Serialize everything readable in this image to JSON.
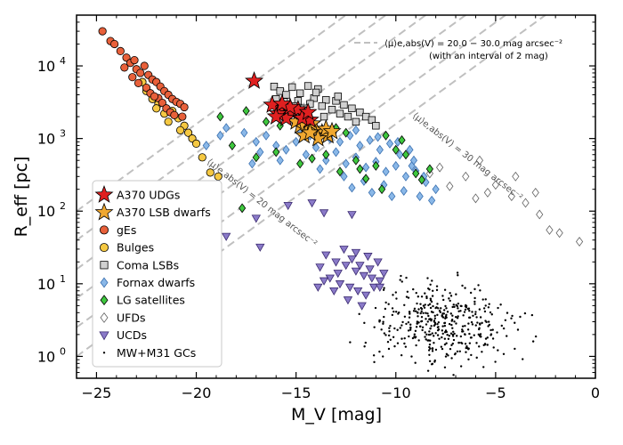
{
  "chart_data": {
    "type": "scatter",
    "xlabel": "M_V [mag]",
    "ylabel": "R_eff [pc]",
    "x_axis_ticks": [
      "−25",
      "−20",
      "−15",
      "−10",
      "−5",
      "0"
    ],
    "x_tick_values": [
      -25,
      -20,
      -15,
      -10,
      -5,
      0
    ],
    "y_axis_ticks": [
      "10",
      "10",
      "10",
      "10",
      "10"
    ],
    "y_tick_exponents": [
      "0",
      "1",
      "2",
      "3",
      "4"
    ],
    "y_tick_values": [
      1,
      10,
      100,
      1000,
      10000
    ],
    "xlim": [
      -26,
      0
    ],
    "ylim": [
      0.5,
      50000
    ],
    "yscale": "log",
    "legend_position": "lower-left",
    "iso_lines": {
      "legend_label": "⟨μ⟩e,abs(V) = 20.0 − 30.0 mag arcsec⁻²",
      "legend_sublabel": "(with an interval of 2 mag)",
      "mu_values": [
        20,
        22,
        24,
        26,
        28,
        30
      ],
      "color": "#c0c0c0",
      "label_20": "⟨μ⟩e,abs(V) = 20 mag arcsec⁻²",
      "label_30": "⟨μ⟩e,abs(V) = 30 mag arcsec⁻²"
    },
    "series": [
      {
        "name": "A370 UDGs",
        "marker": "star",
        "color": "#e02020",
        "edge": "#000000",
        "points": [
          [
            -17.1,
            6200
          ],
          [
            -15.8,
            2600
          ],
          [
            -15.2,
            2300
          ],
          [
            -14.6,
            2100
          ],
          [
            -16.2,
            2900
          ],
          [
            -15.5,
            1900
          ],
          [
            -14.9,
            2500
          ],
          [
            -15.9,
            2200
          ],
          [
            -14.3,
            1800
          ],
          [
            -16.0,
            2000
          ],
          [
            -15.3,
            2700
          ],
          [
            -14.7,
            1900
          ],
          [
            -15.7,
            3000
          ],
          [
            -14.4,
            2300
          ]
        ]
      },
      {
        "name": "A370 LSB dwarfs",
        "marker": "star",
        "color": "#f0a830",
        "edge": "#000000",
        "points": [
          [
            -14.5,
            1400
          ],
          [
            -14.0,
            1300
          ],
          [
            -13.7,
            1200
          ],
          [
            -14.8,
            1500
          ],
          [
            -13.4,
            1100
          ],
          [
            -14.2,
            1600
          ],
          [
            -13.9,
            1000
          ],
          [
            -14.6,
            1100
          ],
          [
            -13.5,
            1350
          ],
          [
            -15.0,
            1700
          ],
          [
            -13.2,
            1250
          ],
          [
            -14.3,
            1200
          ]
        ]
      },
      {
        "name": "gEs",
        "marker": "circle",
        "color": "#e8603a",
        "edge": "#000000",
        "points": [
          [
            -24.7,
            30000
          ],
          [
            -24.3,
            22000
          ],
          [
            -24.1,
            20000
          ],
          [
            -23.8,
            16000
          ],
          [
            -23.5,
            13000
          ],
          [
            -23.3,
            11000
          ],
          [
            -23.1,
            12000
          ],
          [
            -23.0,
            9000
          ],
          [
            -22.8,
            8000
          ],
          [
            -22.6,
            10000
          ],
          [
            -22.4,
            7500
          ],
          [
            -22.2,
            6500
          ],
          [
            -22.0,
            6000
          ],
          [
            -21.8,
            5200
          ],
          [
            -21.6,
            4500
          ],
          [
            -21.4,
            4000
          ],
          [
            -21.2,
            3500
          ],
          [
            -21.0,
            3200
          ],
          [
            -20.8,
            3000
          ],
          [
            -20.6,
            2700
          ],
          [
            -22.5,
            5000
          ],
          [
            -22.3,
            4200
          ],
          [
            -21.9,
            3600
          ],
          [
            -21.7,
            3100
          ],
          [
            -21.5,
            2600
          ],
          [
            -23.2,
            7000
          ],
          [
            -22.9,
            5800
          ],
          [
            -21.3,
            2300
          ],
          [
            -21.1,
            2100
          ],
          [
            -20.7,
            2000
          ],
          [
            -22.1,
            3800
          ],
          [
            -23.6,
            9500
          ]
        ]
      },
      {
        "name": "Bulges",
        "marker": "circle",
        "color": "#f5c842",
        "edge": "#000000",
        "points": [
          [
            -22.7,
            6000
          ],
          [
            -22.5,
            4500
          ],
          [
            -22.2,
            3500
          ],
          [
            -21.9,
            3000
          ],
          [
            -21.6,
            2200
          ],
          [
            -21.2,
            2400
          ],
          [
            -20.9,
            1900
          ],
          [
            -20.6,
            1500
          ],
          [
            -20.4,
            1200
          ],
          [
            -20.2,
            1000
          ],
          [
            -20.0,
            850
          ],
          [
            -19.7,
            550
          ],
          [
            -19.3,
            340
          ],
          [
            -18.9,
            300
          ],
          [
            -21.4,
            1700
          ],
          [
            -22.0,
            2600
          ],
          [
            -20.8,
            1300
          ]
        ]
      },
      {
        "name": "Coma LSBs",
        "marker": "square",
        "color": "#d0d0d0",
        "edge": "#000000",
        "points": [
          [
            -16.1,
            5200
          ],
          [
            -15.8,
            4500
          ],
          [
            -15.2,
            5100
          ],
          [
            -14.4,
            5300
          ],
          [
            -13.9,
            4800
          ],
          [
            -15.5,
            4000
          ],
          [
            -14.8,
            4200
          ],
          [
            -14.1,
            3600
          ],
          [
            -13.5,
            3400
          ],
          [
            -13.0,
            3300
          ],
          [
            -12.6,
            2900
          ],
          [
            -12.2,
            2600
          ],
          [
            -11.8,
            2300
          ],
          [
            -14.9,
            3300
          ],
          [
            -14.3,
            3000
          ],
          [
            -13.7,
            2800
          ],
          [
            -13.2,
            2500
          ],
          [
            -12.8,
            2200
          ],
          [
            -12.4,
            2000
          ],
          [
            -15.6,
            3200
          ],
          [
            -16.0,
            3500
          ],
          [
            -11.5,
            2000
          ],
          [
            -11.2,
            1800
          ],
          [
            -12.0,
            1700
          ],
          [
            -13.6,
            2000
          ],
          [
            -14.6,
            2600
          ],
          [
            -15.1,
            2800
          ],
          [
            -11.0,
            1500
          ],
          [
            -12.9,
            3800
          ],
          [
            -14.0,
            4300
          ]
        ]
      },
      {
        "name": "Fornax dwarfs",
        "marker": "diamond",
        "color": "#8ab8e8",
        "edge": "#3a70b0",
        "points": [
          [
            -18.5,
            1400
          ],
          [
            -17.6,
            1200
          ],
          [
            -17.0,
            900
          ],
          [
            -16.5,
            1100
          ],
          [
            -16.0,
            800
          ],
          [
            -15.5,
            700
          ],
          [
            -15.0,
            900
          ],
          [
            -14.5,
            600
          ],
          [
            -14.0,
            750
          ],
          [
            -13.5,
            500
          ],
          [
            -13.0,
            650
          ],
          [
            -12.5,
            450
          ],
          [
            -12.0,
            550
          ],
          [
            -11.5,
            400
          ],
          [
            -11.0,
            480
          ],
          [
            -10.5,
            350
          ],
          [
            -10.0,
            420
          ],
          [
            -9.5,
            300
          ],
          [
            -9.0,
            360
          ],
          [
            -8.5,
            250
          ],
          [
            -12.8,
            900
          ],
          [
            -12.3,
            1100
          ],
          [
            -11.8,
            800
          ],
          [
            -11.3,
            950
          ],
          [
            -10.8,
            700
          ],
          [
            -10.3,
            850
          ],
          [
            -9.8,
            600
          ],
          [
            -9.3,
            700
          ],
          [
            -13.3,
            1000
          ],
          [
            -14.3,
            1100
          ],
          [
            -14.8,
            1300
          ],
          [
            -12.6,
            300
          ],
          [
            -11.6,
            260
          ],
          [
            -10.6,
            230
          ],
          [
            -9.6,
            190
          ],
          [
            -8.8,
            160
          ],
          [
            -8.2,
            140
          ],
          [
            -13.8,
            380
          ],
          [
            -15.8,
            500
          ],
          [
            -16.8,
            650
          ],
          [
            -17.2,
            450
          ],
          [
            -18.8,
            1100
          ],
          [
            -19.5,
            800
          ],
          [
            -10.2,
            160
          ],
          [
            -11.2,
            180
          ],
          [
            -12.2,
            210
          ],
          [
            -9.2,
            420
          ],
          [
            -8.6,
            300
          ],
          [
            -8.0,
            200
          ],
          [
            -13.6,
            1200
          ],
          [
            -12.0,
            1300
          ],
          [
            -10.9,
            1050
          ],
          [
            -9.9,
            900
          ],
          [
            -9.1,
            500
          ]
        ]
      },
      {
        "name": "LG satellites",
        "marker": "diamond",
        "color": "#3ec83e",
        "edge": "#000000",
        "points": [
          [
            -18.8,
            2000
          ],
          [
            -17.5,
            2400
          ],
          [
            -16.5,
            1700
          ],
          [
            -15.8,
            1500
          ],
          [
            -14.8,
            450
          ],
          [
            -13.5,
            600
          ],
          [
            -12.8,
            350
          ],
          [
            -12.0,
            500
          ],
          [
            -11.5,
            280
          ],
          [
            -11.0,
            420
          ],
          [
            -10.5,
            1100
          ],
          [
            -10.0,
            700
          ],
          [
            -9.5,
            600
          ],
          [
            -9.0,
            330
          ],
          [
            -8.7,
            270
          ],
          [
            -8.3,
            380
          ],
          [
            -16.0,
            650
          ],
          [
            -17.0,
            550
          ],
          [
            -18.2,
            800
          ],
          [
            -17.7,
            110
          ],
          [
            -11.8,
            380
          ],
          [
            -12.5,
            1200
          ],
          [
            -9.7,
            950
          ],
          [
            -10.7,
            200
          ],
          [
            -13.0,
            1400
          ],
          [
            -14.2,
            530
          ]
        ]
      },
      {
        "name": "UFDs",
        "marker": "diamond-open",
        "color": "#ffffff",
        "edge": "#606060",
        "points": [
          [
            -7.8,
            400
          ],
          [
            -6.5,
            300
          ],
          [
            -5.8,
            500
          ],
          [
            -5.0,
            230
          ],
          [
            -4.2,
            160
          ],
          [
            -3.5,
            130
          ],
          [
            -2.8,
            90
          ],
          [
            -2.3,
            55
          ],
          [
            -1.8,
            50
          ],
          [
            -0.8,
            38
          ],
          [
            -3.0,
            180
          ],
          [
            -4.0,
            300
          ],
          [
            -6.0,
            150
          ],
          [
            -7.3,
            220
          ],
          [
            -8.3,
            330
          ],
          [
            -5.4,
            180
          ]
        ]
      },
      {
        "name": "UCDs",
        "marker": "triangle-down",
        "color": "#8a7ac8",
        "edge": "#3a2a70",
        "points": [
          [
            -15.4,
            120
          ],
          [
            -14.2,
            130
          ],
          [
            -13.6,
            95
          ],
          [
            -12.2,
            90
          ],
          [
            -17.0,
            80
          ],
          [
            -18.5,
            45
          ],
          [
            -16.8,
            32
          ],
          [
            -19.2,
            20
          ],
          [
            -13.5,
            25
          ],
          [
            -13.0,
            20
          ],
          [
            -12.5,
            18
          ],
          [
            -12.0,
            15
          ],
          [
            -11.6,
            13
          ],
          [
            -11.2,
            12
          ],
          [
            -10.8,
            11
          ],
          [
            -13.3,
            12
          ],
          [
            -12.8,
            10
          ],
          [
            -12.3,
            9
          ],
          [
            -11.9,
            8
          ],
          [
            -11.5,
            7
          ],
          [
            -11.1,
            9
          ],
          [
            -12.6,
            30
          ],
          [
            -12.0,
            27
          ],
          [
            -11.4,
            24
          ],
          [
            -13.8,
            17
          ],
          [
            -13.1,
            8
          ],
          [
            -12.4,
            6
          ],
          [
            -11.7,
            5
          ],
          [
            -10.9,
            20
          ],
          [
            -10.6,
            14
          ],
          [
            -13.6,
            11
          ],
          [
            -12.9,
            14
          ],
          [
            -12.2,
            22
          ],
          [
            -11.8,
            18
          ],
          [
            -11.3,
            16
          ],
          [
            -10.8,
            9
          ],
          [
            -13.9,
            9
          ]
        ]
      },
      {
        "name": "MW+M31 GCs",
        "marker": "dot",
        "color": "#000000",
        "edge": "#000000",
        "points": []
      }
    ]
  }
}
